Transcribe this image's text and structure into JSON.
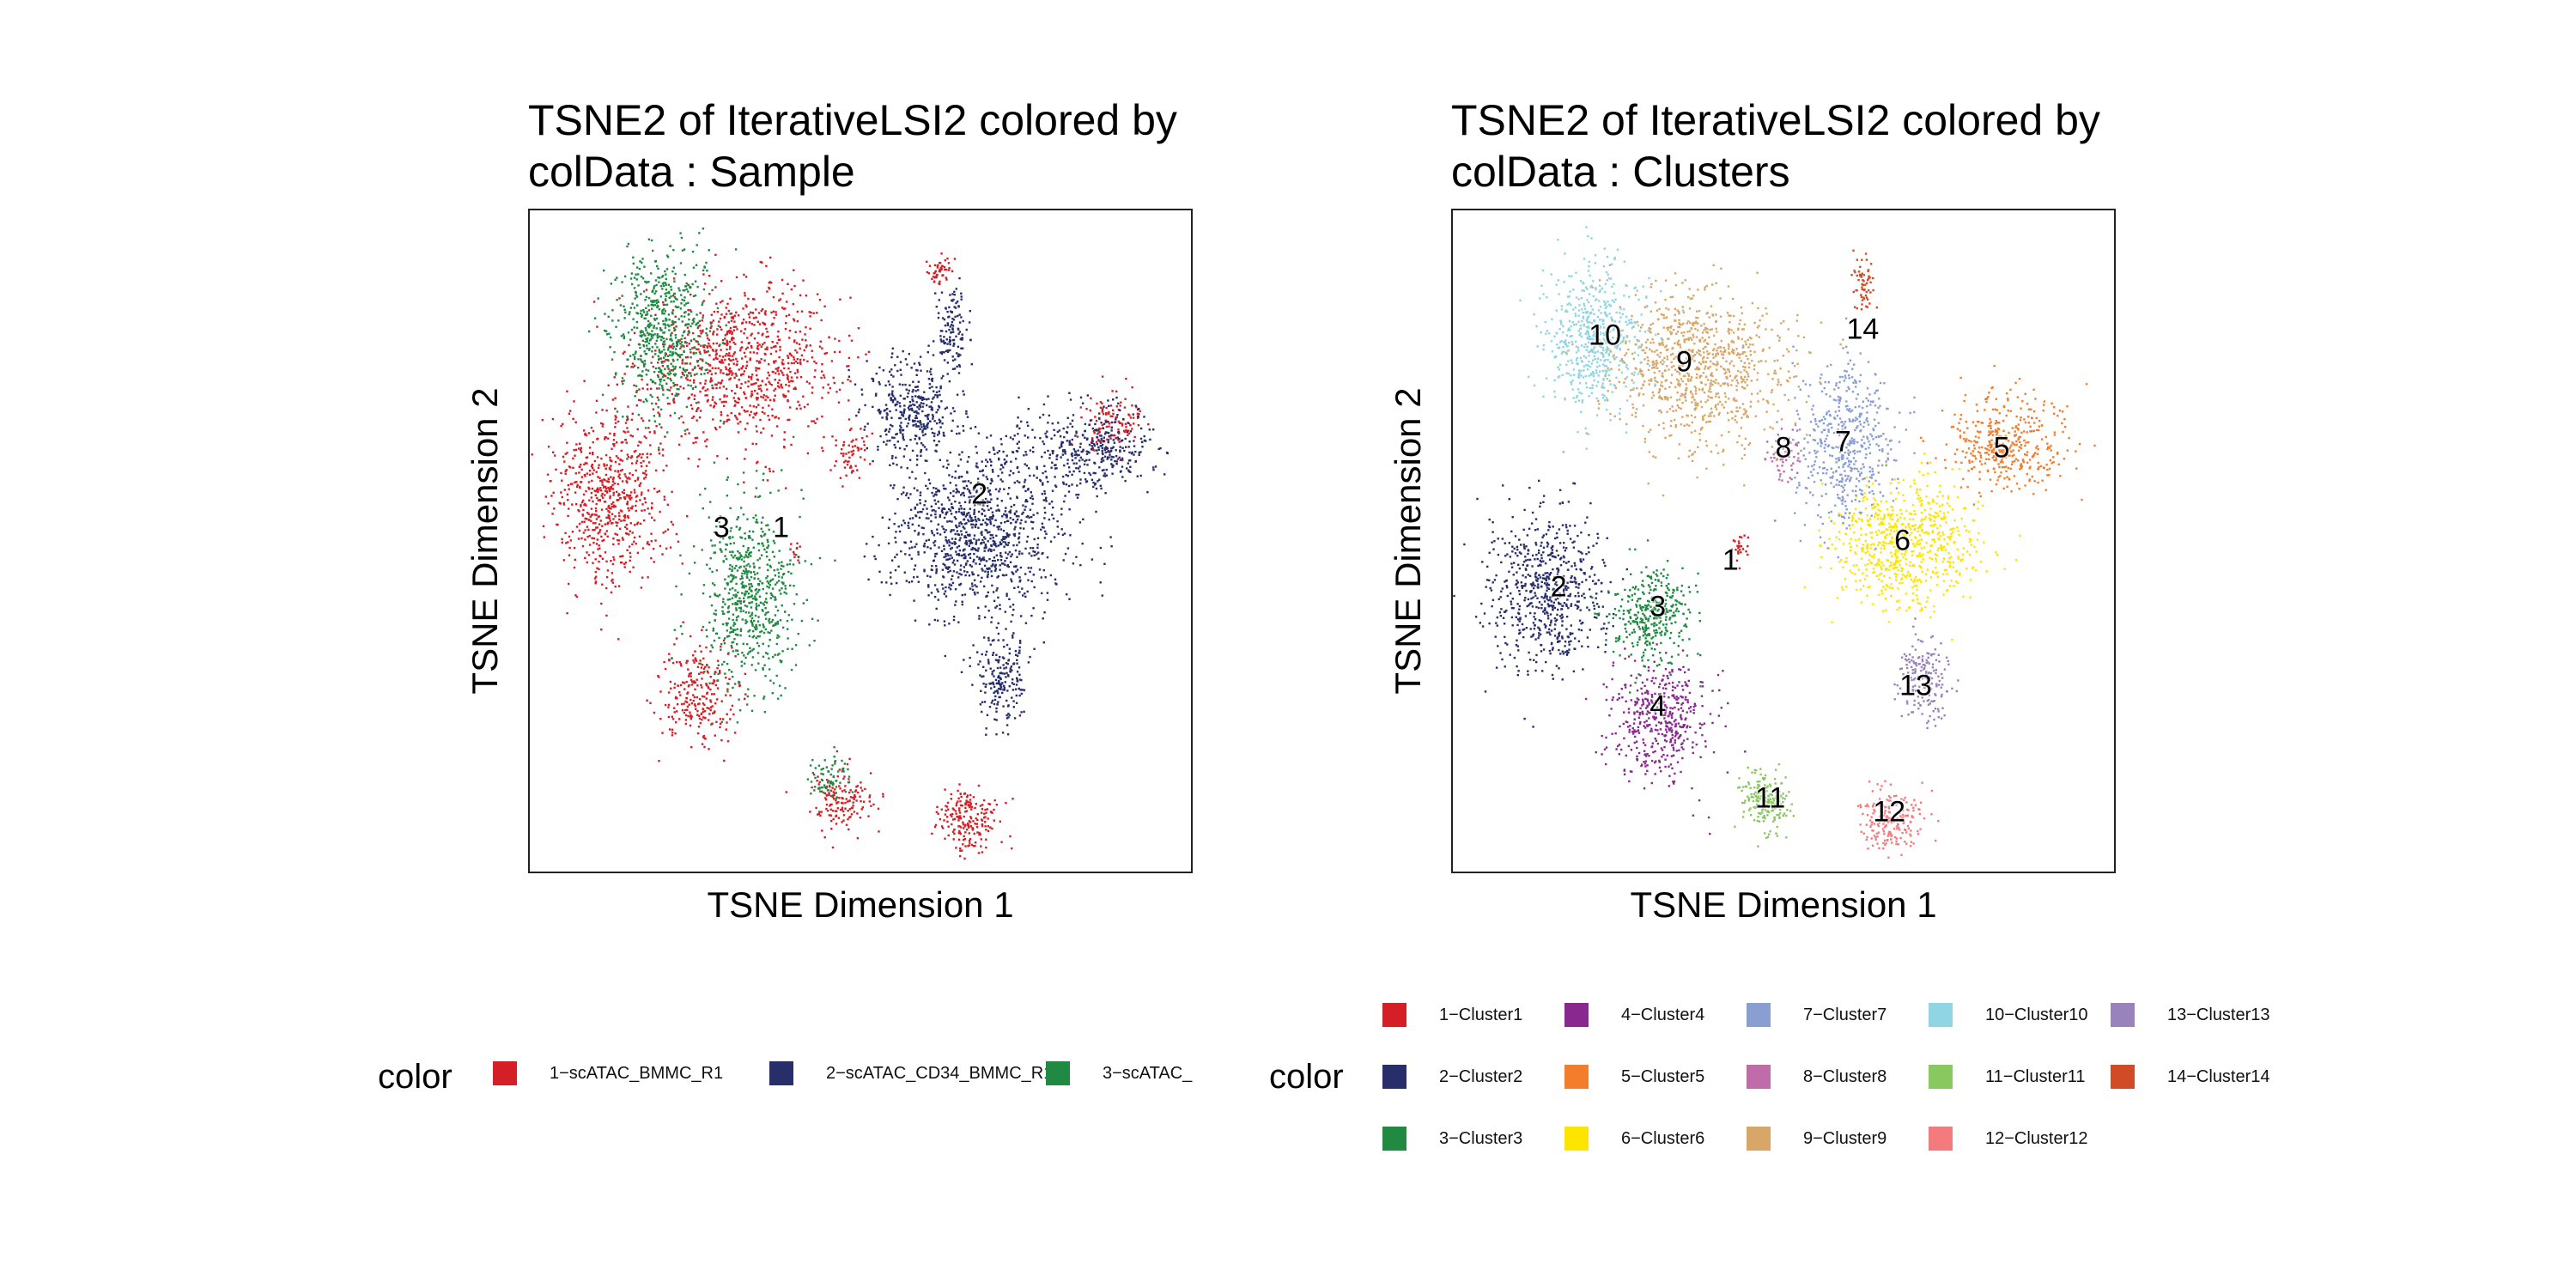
{
  "panels": [
    {
      "title_line1": "TSNE2 of IterativeLSI2  colored by",
      "title_line2": "colData :  Sample",
      "xlabel": "TSNE Dimension 1",
      "ylabel": "TSNE Dimension 2"
    },
    {
      "title_line1": "TSNE2 of IterativeLSI2  colored by",
      "title_line2": "colData :  Clusters",
      "xlabel": "TSNE Dimension 1",
      "ylabel": "TSNE Dimension 2"
    }
  ],
  "legends": {
    "left": {
      "title": "color",
      "items": [
        {
          "label": "1−scATAC_BMMC_R1",
          "color": "#D51F26"
        },
        {
          "label": "2−scATAC_CD34_BMMC_R1",
          "color": "#272E6A"
        },
        {
          "label": "3−scATAC_",
          "color": "#208A42"
        }
      ]
    },
    "right": {
      "title": "color",
      "items": [
        {
          "label": "1−Cluster1",
          "color": "#D51F26"
        },
        {
          "label": "2−Cluster2",
          "color": "#272E6A"
        },
        {
          "label": "3−Cluster3",
          "color": "#208A42"
        },
        {
          "label": "4−Cluster4",
          "color": "#89288F"
        },
        {
          "label": "5−Cluster5",
          "color": "#F47D2B"
        },
        {
          "label": "6−Cluster6",
          "color": "#FEE500"
        },
        {
          "label": "7−Cluster7",
          "color": "#8A9FD1"
        },
        {
          "label": "8−Cluster8",
          "color": "#C06CAB"
        },
        {
          "label": "9−Cluster9",
          "color": "#D8A767"
        },
        {
          "label": "10−Cluster10",
          "color": "#90D5E4"
        },
        {
          "label": "11−Cluster11",
          "color": "#89C75F"
        },
        {
          "label": "12−Cluster12",
          "color": "#F37B7D"
        },
        {
          "label": "13−Cluster13",
          "color": "#9983BD"
        },
        {
          "label": "14−Cluster14",
          "color": "#D24B27"
        }
      ]
    }
  },
  "chart_data": [
    {
      "type": "scatter",
      "title": "TSNE2 of IterativeLSI2  colored by colData :  Sample",
      "xlabel": "TSNE Dimension 1",
      "ylabel": "TSNE Dimension 2",
      "xlim": [
        0,
        100
      ],
      "ylim": [
        0,
        100
      ],
      "grid": false,
      "legend_position": "bottom",
      "group_labels": [
        {
          "text": "3",
          "x": 29,
          "y": 52
        },
        {
          "text": "1",
          "x": 38,
          "y": 52
        },
        {
          "text": "2",
          "x": 68,
          "y": 57
        }
      ],
      "series": [
        {
          "name": "1−scATAC_BMMC_R1",
          "color": "#D51F26",
          "clusters": [
            {
              "cx": 32,
              "cy": 77,
              "sx": 10,
              "sy": 8,
              "n": 900
            },
            {
              "cx": 12,
              "cy": 57,
              "sx": 6,
              "sy": 9,
              "n": 650
            },
            {
              "cx": 25,
              "cy": 27,
              "sx": 4,
              "sy": 5,
              "n": 250
            },
            {
              "cx": 47,
              "cy": 11,
              "sx": 3,
              "sy": 3,
              "n": 150
            },
            {
              "cx": 66,
              "cy": 8,
              "sx": 3,
              "sy": 3,
              "n": 200
            },
            {
              "cx": 62,
              "cy": 91,
              "sx": 1.2,
              "sy": 1.5,
              "n": 50
            },
            {
              "cx": 88,
              "cy": 68,
              "sx": 3,
              "sy": 3,
              "n": 120
            },
            {
              "cx": 48,
              "cy": 63,
              "sx": 2,
              "sy": 3,
              "n": 60
            },
            {
              "cx": 40,
              "cy": 49,
              "sx": 1,
              "sy": 1,
              "n": 12
            }
          ]
        },
        {
          "name": "2−scATAC_CD34_BMMC_R1",
          "color": "#272E6A",
          "clusters": [
            {
              "cx": 68,
              "cy": 52,
              "sx": 9,
              "sy": 9,
              "n": 1100
            },
            {
              "cx": 58,
              "cy": 70,
              "sx": 5,
              "sy": 5,
              "n": 350
            },
            {
              "cx": 85,
              "cy": 64,
              "sx": 6,
              "sy": 4,
              "n": 350
            },
            {
              "cx": 64,
              "cy": 82,
              "sx": 1.5,
              "sy": 5,
              "n": 120
            },
            {
              "cx": 71,
              "cy": 29,
              "sx": 2.5,
              "sy": 5,
              "n": 200
            }
          ]
        },
        {
          "name": "3−scATAC_",
          "color": "#208A42",
          "clusters": [
            {
              "cx": 20,
              "cy": 82,
              "sx": 5,
              "sy": 8,
              "n": 600
            },
            {
              "cx": 33,
              "cy": 42,
              "sx": 5,
              "sy": 10,
              "n": 650
            },
            {
              "cx": 45,
              "cy": 14,
              "sx": 2,
              "sy": 2,
              "n": 70
            }
          ]
        }
      ]
    },
    {
      "type": "scatter",
      "title": "TSNE2 of IterativeLSI2  colored by colData :  Clusters",
      "xlabel": "TSNE Dimension 1",
      "ylabel": "TSNE Dimension 2",
      "xlim": [
        0,
        100
      ],
      "ylim": [
        0,
        100
      ],
      "grid": false,
      "legend_position": "bottom",
      "group_labels": [
        {
          "text": "1",
          "x": 42,
          "y": 47
        },
        {
          "text": "2",
          "x": 16,
          "y": 43
        },
        {
          "text": "3",
          "x": 31,
          "y": 40
        },
        {
          "text": "4",
          "x": 31,
          "y": 25
        },
        {
          "text": "5",
          "x": 83,
          "y": 64
        },
        {
          "text": "6",
          "x": 68,
          "y": 50
        },
        {
          "text": "7",
          "x": 59,
          "y": 65
        },
        {
          "text": "8",
          "x": 50,
          "y": 64
        },
        {
          "text": "9",
          "x": 35,
          "y": 77
        },
        {
          "text": "10",
          "x": 23,
          "y": 81
        },
        {
          "text": "11",
          "x": 48,
          "y": 11
        },
        {
          "text": "12",
          "x": 66,
          "y": 9
        },
        {
          "text": "13",
          "x": 70,
          "y": 28
        },
        {
          "text": "14",
          "x": 62,
          "y": 82
        }
      ],
      "series": [
        {
          "name": "1−Cluster1",
          "color": "#D51F26",
          "clusters": [
            {
              "cx": 43,
              "cy": 49,
              "sx": 1,
              "sy": 1.5,
              "n": 25
            }
          ]
        },
        {
          "name": "2−Cluster2",
          "color": "#272E6A",
          "clusters": [
            {
              "cx": 14,
              "cy": 43,
              "sx": 6,
              "sy": 8,
              "n": 650
            }
          ]
        },
        {
          "name": "3−Cluster3",
          "color": "#208A42",
          "clusters": [
            {
              "cx": 30,
              "cy": 39,
              "sx": 4,
              "sy": 5,
              "n": 350
            }
          ]
        },
        {
          "name": "4−Cluster4",
          "color": "#89288F",
          "clusters": [
            {
              "cx": 31,
              "cy": 23,
              "sx": 5,
              "sy": 6,
              "n": 450
            }
          ]
        },
        {
          "name": "5−Cluster5",
          "color": "#F47D2B",
          "clusters": [
            {
              "cx": 84,
              "cy": 65,
              "sx": 6,
              "sy": 5,
              "n": 400
            }
          ]
        },
        {
          "name": "6−Cluster6",
          "color": "#FEE500",
          "clusters": [
            {
              "cx": 68,
              "cy": 50,
              "sx": 7,
              "sy": 6,
              "n": 700
            }
          ]
        },
        {
          "name": "7−Cluster7",
          "color": "#8A9FD1",
          "clusters": [
            {
              "cx": 59,
              "cy": 65,
              "sx": 5,
              "sy": 8,
              "n": 500
            }
          ]
        },
        {
          "name": "8−Cluster8",
          "color": "#C06CAB",
          "clusters": [
            {
              "cx": 50,
              "cy": 63,
              "sx": 1.5,
              "sy": 3,
              "n": 60
            }
          ]
        },
        {
          "name": "9−Cluster9",
          "color": "#D8A767",
          "clusters": [
            {
              "cx": 37,
              "cy": 76,
              "sx": 9,
              "sy": 8,
              "n": 900
            }
          ]
        },
        {
          "name": "10−Cluster10",
          "color": "#90D5E4",
          "clusters": [
            {
              "cx": 21,
              "cy": 81,
              "sx": 5,
              "sy": 7,
              "n": 550
            }
          ]
        },
        {
          "name": "11−Cluster11",
          "color": "#89C75F",
          "clusters": [
            {
              "cx": 47,
              "cy": 11,
              "sx": 2.5,
              "sy": 3,
              "n": 200
            }
          ]
        },
        {
          "name": "12−Cluster12",
          "color": "#F37B7D",
          "clusters": [
            {
              "cx": 66,
              "cy": 8,
              "sx": 3,
              "sy": 3,
              "n": 200
            }
          ]
        },
        {
          "name": "13−Cluster13",
          "color": "#9983BD",
          "clusters": [
            {
              "cx": 71,
              "cy": 29,
              "sx": 2.5,
              "sy": 4,
              "n": 180
            }
          ]
        },
        {
          "name": "14−Cluster14",
          "color": "#D24B27",
          "clusters": [
            {
              "cx": 62,
              "cy": 89,
              "sx": 1.2,
              "sy": 2.5,
              "n": 60
            }
          ]
        }
      ]
    }
  ]
}
